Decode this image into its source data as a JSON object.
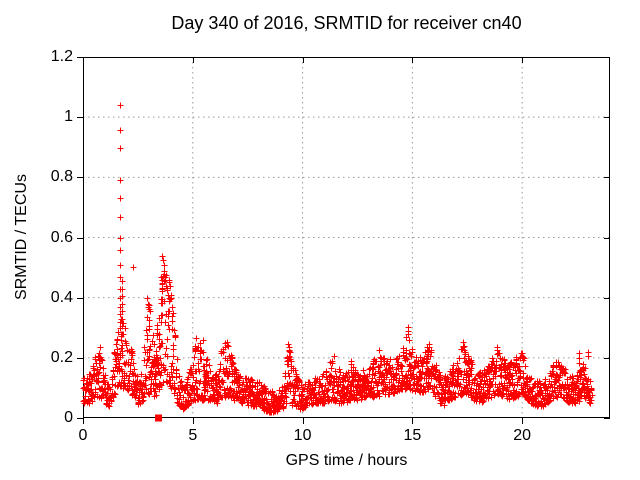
{
  "window": {
    "background": "#ffffff",
    "plot_border_color": "#000000",
    "grid_color": "#999999"
  },
  "chart_data": {
    "type": "scatter",
    "title": "Day 340 of 2016, SRMTID for receiver cn40",
    "xlabel": "GPS time / hours",
    "ylabel": "SRMTID / TECUs",
    "xlim": [
      0,
      24
    ],
    "ylim": [
      0,
      1.2
    ],
    "xticks": [
      {
        "v": 0,
        "label": "0"
      },
      {
        "v": 5,
        "label": "5"
      },
      {
        "v": 10,
        "label": "10"
      },
      {
        "v": 15,
        "label": "15"
      },
      {
        "v": 20,
        "label": "20"
      }
    ],
    "yticks": [
      {
        "v": 0,
        "label": "0"
      },
      {
        "v": 0.2,
        "label": "0.2"
      },
      {
        "v": 0.4,
        "label": "0.4"
      },
      {
        "v": 0.6,
        "label": "0.6"
      },
      {
        "v": 0.8,
        "label": "0.8"
      },
      {
        "v": 1,
        "label": "1"
      },
      {
        "v": 1.2,
        "label": "1.2"
      }
    ],
    "grid": true,
    "legend": "none",
    "marker": {
      "shape": "plus",
      "color": "#ff0000",
      "size": 7
    },
    "special_square_point": {
      "x": 3.44,
      "y": 0.0,
      "shape": "filled-square",
      "color": "#ff0000",
      "size": 7
    },
    "sampling": {
      "t_start": 0.0,
      "t_end": 23.17,
      "points_per_hour": 92,
      "seed": 340
    },
    "band_envelope": {
      "description": "piecewise-linear [hour, y_min, y_max] envelope of the dense scatter band",
      "anchors": [
        [
          0.0,
          0.05,
          0.13
        ],
        [
          0.3,
          0.05,
          0.15
        ],
        [
          0.55,
          0.06,
          0.2
        ],
        [
          0.75,
          0.07,
          0.24
        ],
        [
          0.95,
          0.05,
          0.16
        ],
        [
          1.2,
          0.04,
          0.12
        ],
        [
          1.45,
          0.08,
          0.25
        ],
        [
          1.7,
          0.1,
          0.33
        ],
        [
          1.95,
          0.1,
          0.3
        ],
        [
          2.15,
          0.08,
          0.25
        ],
        [
          2.35,
          0.07,
          0.18
        ],
        [
          2.55,
          0.04,
          0.12
        ],
        [
          2.75,
          0.06,
          0.2
        ],
        [
          2.95,
          0.08,
          0.38
        ],
        [
          3.1,
          0.08,
          0.33
        ],
        [
          3.3,
          0.06,
          0.22
        ],
        [
          3.5,
          0.1,
          0.42
        ],
        [
          3.7,
          0.12,
          0.5
        ],
        [
          3.85,
          0.12,
          0.48
        ],
        [
          4.0,
          0.1,
          0.42
        ],
        [
          4.15,
          0.08,
          0.35
        ],
        [
          4.35,
          0.04,
          0.14
        ],
        [
          4.6,
          0.03,
          0.1
        ],
        [
          4.85,
          0.05,
          0.16
        ],
        [
          5.05,
          0.06,
          0.24
        ],
        [
          5.3,
          0.06,
          0.26
        ],
        [
          5.55,
          0.06,
          0.22
        ],
        [
          5.8,
          0.06,
          0.16
        ],
        [
          6.1,
          0.05,
          0.15
        ],
        [
          6.35,
          0.07,
          0.24
        ],
        [
          6.6,
          0.07,
          0.26
        ],
        [
          6.85,
          0.06,
          0.18
        ],
        [
          7.2,
          0.05,
          0.14
        ],
        [
          7.6,
          0.04,
          0.13
        ],
        [
          8.0,
          0.04,
          0.12
        ],
        [
          8.4,
          0.02,
          0.1
        ],
        [
          8.8,
          0.02,
          0.08
        ],
        [
          9.1,
          0.03,
          0.12
        ],
        [
          9.35,
          0.05,
          0.24
        ],
        [
          9.6,
          0.04,
          0.18
        ],
        [
          9.9,
          0.03,
          0.11
        ],
        [
          10.2,
          0.04,
          0.12
        ],
        [
          10.6,
          0.05,
          0.14
        ],
        [
          11.0,
          0.05,
          0.15
        ],
        [
          11.3,
          0.06,
          0.2
        ],
        [
          11.6,
          0.05,
          0.17
        ],
        [
          11.9,
          0.05,
          0.14
        ],
        [
          12.2,
          0.06,
          0.18
        ],
        [
          12.5,
          0.06,
          0.15
        ],
        [
          12.9,
          0.07,
          0.17
        ],
        [
          13.3,
          0.07,
          0.2
        ],
        [
          13.7,
          0.08,
          0.21
        ],
        [
          14.1,
          0.08,
          0.19
        ],
        [
          14.5,
          0.09,
          0.22
        ],
        [
          14.8,
          0.1,
          0.3
        ],
        [
          15.0,
          0.09,
          0.24
        ],
        [
          15.3,
          0.08,
          0.2
        ],
        [
          15.6,
          0.09,
          0.23
        ],
        [
          15.8,
          0.1,
          0.25
        ],
        [
          16.1,
          0.06,
          0.17
        ],
        [
          16.4,
          0.04,
          0.13
        ],
        [
          16.7,
          0.06,
          0.16
        ],
        [
          17.0,
          0.07,
          0.2
        ],
        [
          17.3,
          0.08,
          0.26
        ],
        [
          17.5,
          0.08,
          0.24
        ],
        [
          17.8,
          0.06,
          0.17
        ],
        [
          18.2,
          0.05,
          0.15
        ],
        [
          18.6,
          0.07,
          0.2
        ],
        [
          18.85,
          0.08,
          0.24
        ],
        [
          19.1,
          0.07,
          0.2
        ],
        [
          19.4,
          0.06,
          0.18
        ],
        [
          19.7,
          0.07,
          0.2
        ],
        [
          20.0,
          0.08,
          0.22
        ],
        [
          20.3,
          0.05,
          0.15
        ],
        [
          20.7,
          0.04,
          0.12
        ],
        [
          21.0,
          0.04,
          0.13
        ],
        [
          21.3,
          0.06,
          0.17
        ],
        [
          21.6,
          0.07,
          0.2
        ],
        [
          21.9,
          0.06,
          0.17
        ],
        [
          22.2,
          0.05,
          0.15
        ],
        [
          22.5,
          0.05,
          0.14
        ],
        [
          22.75,
          0.06,
          0.18
        ],
        [
          22.95,
          0.05,
          0.16
        ],
        [
          23.1,
          0.05,
          0.12
        ],
        [
          23.17,
          0.05,
          0.1
        ]
      ]
    },
    "spike_points": [
      [
        1.685,
        1.04
      ],
      [
        1.685,
        0.957
      ],
      [
        1.685,
        0.896
      ],
      [
        1.685,
        0.791
      ],
      [
        1.685,
        0.73
      ],
      [
        1.685,
        0.669
      ],
      [
        1.685,
        0.597
      ],
      [
        1.685,
        0.558
      ],
      [
        1.685,
        0.508
      ],
      [
        1.685,
        0.469
      ],
      [
        1.685,
        0.43
      ],
      [
        1.685,
        0.398
      ],
      [
        1.685,
        0.37
      ],
      [
        1.685,
        0.345
      ],
      [
        1.69,
        0.32
      ],
      [
        1.7,
        0.3
      ],
      [
        1.71,
        0.28
      ],
      [
        1.72,
        0.26
      ],
      [
        1.76,
        0.455
      ],
      [
        1.76,
        0.43
      ],
      [
        1.76,
        0.405
      ],
      [
        1.77,
        0.38
      ],
      [
        1.77,
        0.355
      ],
      [
        1.78,
        0.33
      ],
      [
        1.78,
        0.305
      ],
      [
        1.79,
        0.28
      ],
      [
        2.29,
        0.503
      ],
      [
        2.93,
        0.4
      ],
      [
        2.96,
        0.38
      ],
      [
        3.0,
        0.375
      ],
      [
        3.03,
        0.355
      ],
      [
        3.56,
        0.47
      ],
      [
        3.6,
        0.538
      ],
      [
        3.63,
        0.525
      ],
      [
        3.67,
        0.51
      ],
      [
        3.7,
        0.49
      ],
      [
        3.73,
        0.458
      ],
      [
        3.76,
        0.475
      ],
      [
        3.8,
        0.44
      ],
      [
        3.84,
        0.425
      ],
      [
        3.88,
        0.41
      ],
      [
        3.93,
        0.46
      ],
      [
        3.97,
        0.44
      ],
      [
        4.02,
        0.4
      ],
      [
        4.06,
        0.37
      ],
      [
        4.1,
        0.35
      ],
      [
        0.78,
        0.235
      ],
      [
        5.15,
        0.265
      ],
      [
        5.45,
        0.26
      ],
      [
        6.45,
        0.25
      ],
      [
        6.48,
        0.235
      ],
      [
        6.62,
        0.24
      ],
      [
        9.32,
        0.245
      ],
      [
        9.36,
        0.235
      ],
      [
        9.41,
        0.22
      ],
      [
        11.45,
        0.205
      ],
      [
        12.2,
        0.19
      ],
      [
        13.5,
        0.225
      ],
      [
        14.8,
        0.302
      ],
      [
        14.82,
        0.289
      ],
      [
        14.81,
        0.279
      ],
      [
        14.84,
        0.26
      ],
      [
        15.75,
        0.245
      ],
      [
        17.3,
        0.253
      ],
      [
        17.33,
        0.24
      ],
      [
        17.36,
        0.225
      ],
      [
        18.85,
        0.235
      ],
      [
        19.95,
        0.215
      ],
      [
        20.0,
        0.205
      ],
      [
        22.58,
        0.216
      ],
      [
        22.6,
        0.2
      ],
      [
        22.59,
        0.184
      ],
      [
        22.61,
        0.152
      ],
      [
        23.0,
        0.22
      ],
      [
        23.02,
        0.205
      ]
    ]
  }
}
